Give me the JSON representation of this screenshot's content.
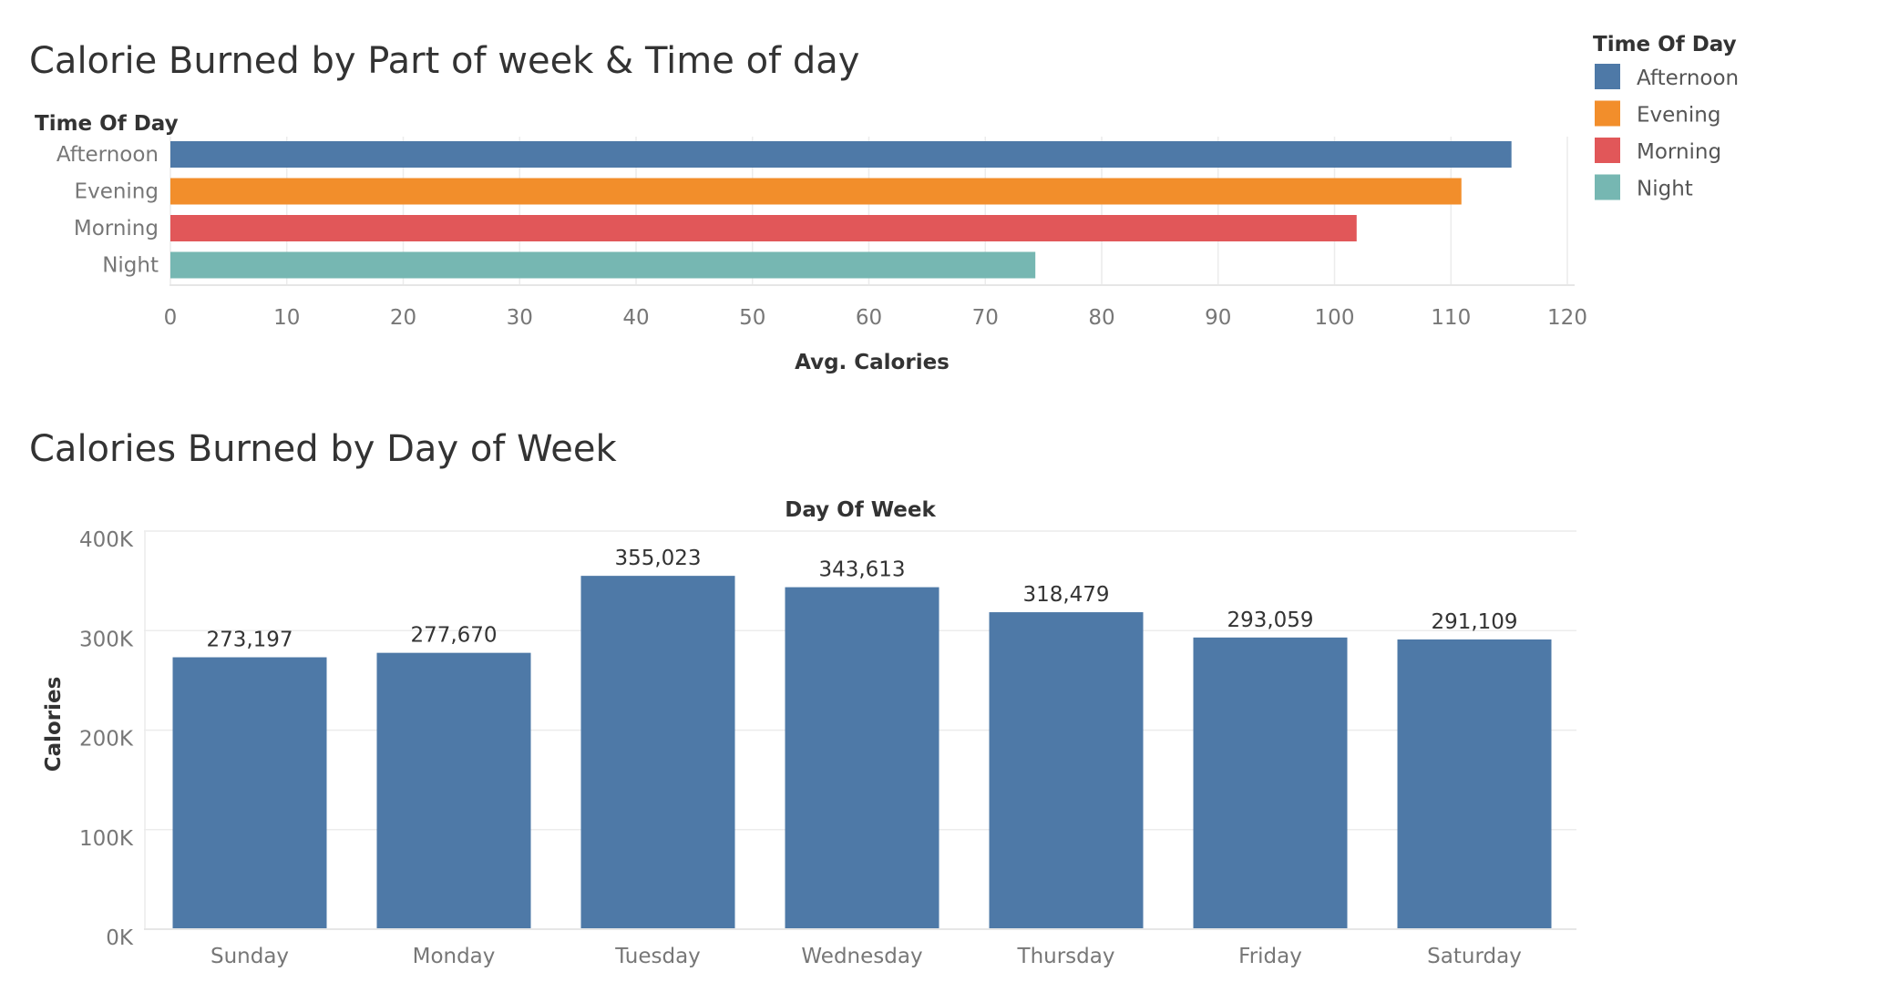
{
  "chart_data": [
    {
      "type": "bar",
      "orientation": "horizontal",
      "title": "Calorie Burned by Part of week & Time of day",
      "row_header": "Time Of Day",
      "xlabel": "Avg. Calories",
      "categories": [
        "Afternoon",
        "Evening",
        "Morning",
        "Night"
      ],
      "values": [
        115.2,
        110.9,
        101.9,
        74.3
      ],
      "colors": [
        "#4e79a7",
        "#f28e2b",
        "#e15759",
        "#76b7b2"
      ],
      "xlim": [
        0,
        120
      ],
      "xticks": [
        "0",
        "10",
        "20",
        "30",
        "40",
        "50",
        "60",
        "70",
        "80",
        "90",
        "100",
        "110",
        "120"
      ],
      "grid": true,
      "legend": {
        "title": "Time Of Day",
        "position": "top-right",
        "items": [
          {
            "label": "Afternoon",
            "color": "#4e79a7"
          },
          {
            "label": "Evening",
            "color": "#f28e2b"
          },
          {
            "label": "Morning",
            "color": "#e15759"
          },
          {
            "label": "Night",
            "color": "#76b7b2"
          }
        ]
      }
    },
    {
      "type": "bar",
      "orientation": "vertical",
      "title": "Calories Burned by Day of Week",
      "column_header": "Day Of Week",
      "ylabel": "Calories",
      "categories": [
        "Sunday",
        "Monday",
        "Tuesday",
        "Wednesday",
        "Thursday",
        "Friday",
        "Saturday"
      ],
      "values": [
        273197,
        277670,
        355023,
        343613,
        318479,
        293059,
        291109
      ],
      "data_labels": [
        "273,197",
        "277,670",
        "355,023",
        "343,613",
        "318,479",
        "293,059",
        "291,109"
      ],
      "color": "#4e79a7",
      "ylim": [
        0,
        400000
      ],
      "yticks": [
        "0K",
        "100K",
        "200K",
        "300K",
        "400K"
      ],
      "grid": true
    }
  ]
}
